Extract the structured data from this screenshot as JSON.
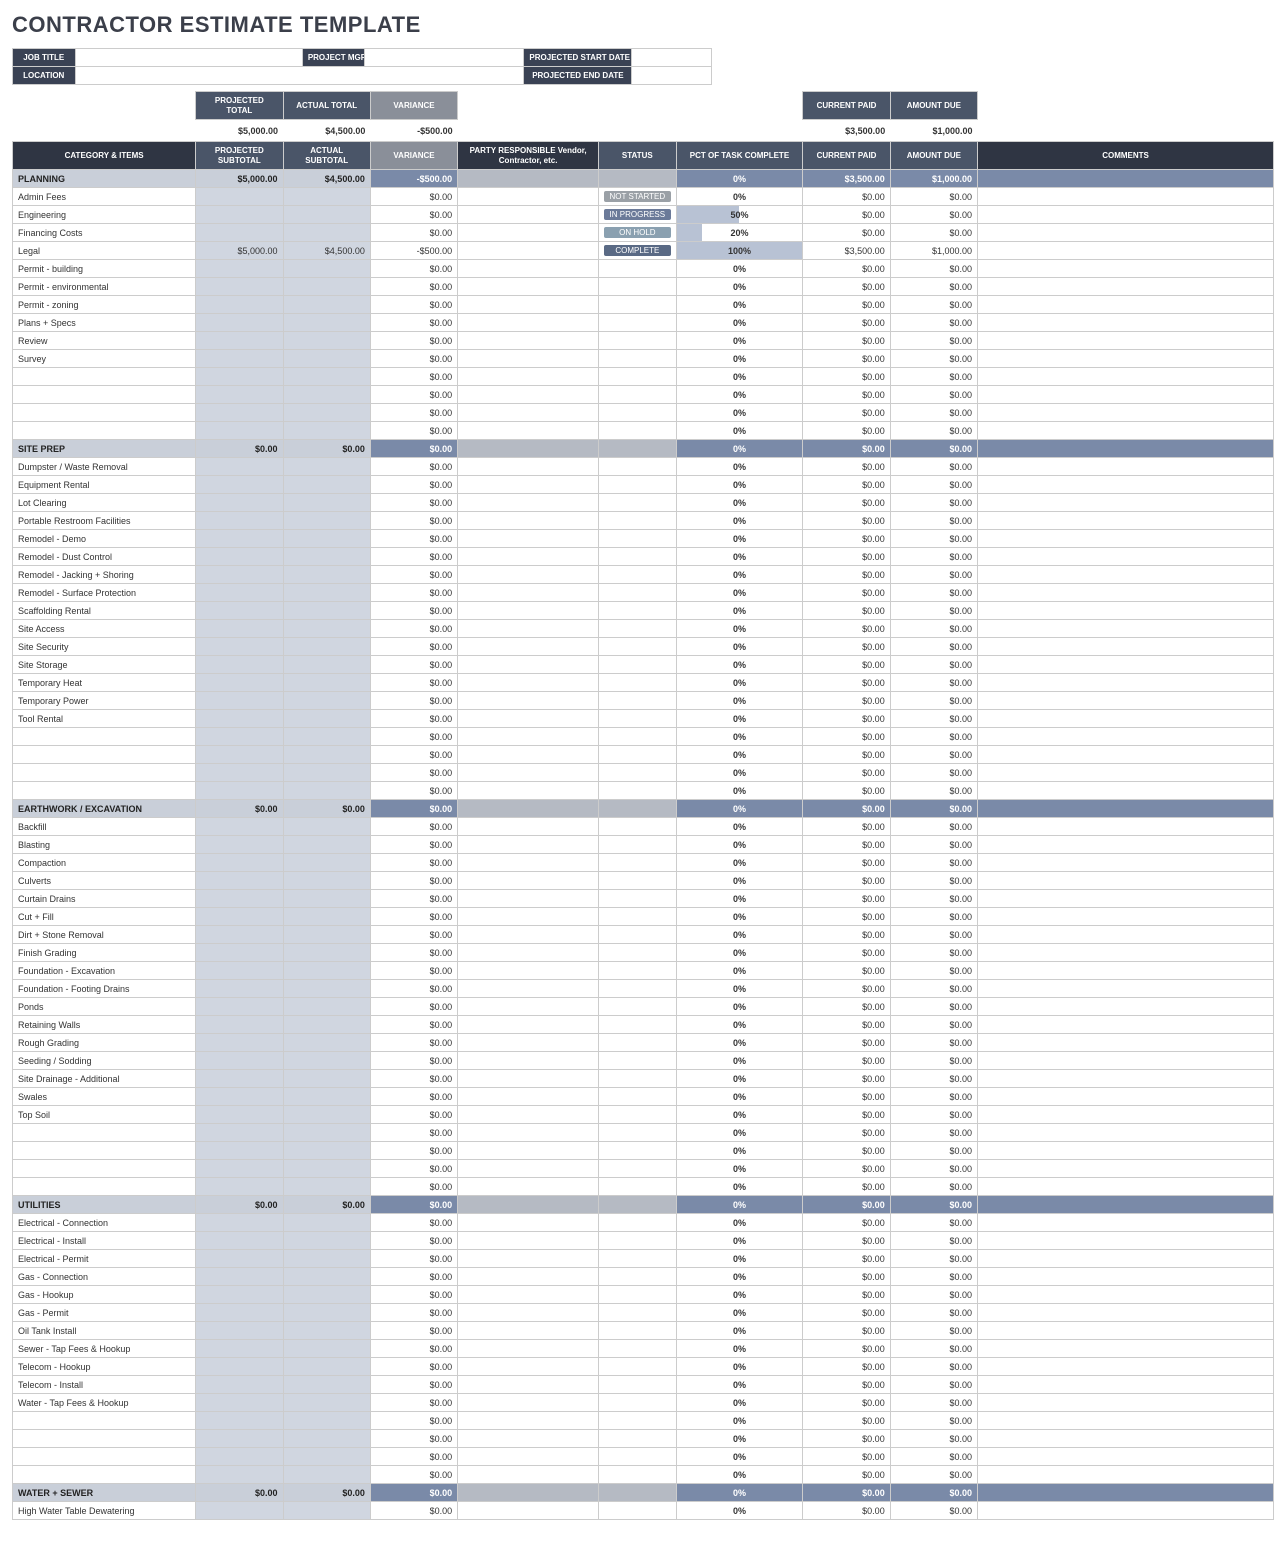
{
  "title": "CONTRACTOR ESTIMATE TEMPLATE",
  "info_labels": {
    "job_title": "JOB TITLE",
    "project_mgr": "PROJECT MGR",
    "start": "PROJECTED START DATE",
    "location": "LOCATION",
    "end": "PROJECTED END DATE"
  },
  "summary_headers": {
    "proj_total": "PROJECTED TOTAL",
    "act_total": "ACTUAL TOTAL",
    "variance": "VARIANCE",
    "curr_paid": "CURRENT PAID",
    "amt_due": "AMOUNT DUE"
  },
  "summary_values": {
    "proj_total": "$5,000.00",
    "act_total": "$4,500.00",
    "variance": "-$500.00",
    "curr_paid": "$3,500.00",
    "amt_due": "$1,000.00"
  },
  "col_headers": {
    "cat": "CATEGORY & ITEMS",
    "proj_sub": "PROJECTED SUBTOTAL",
    "act_sub": "ACTUAL SUBTOTAL",
    "variance": "VARIANCE",
    "party": "PARTY RESPONSIBLE Vendor, Contractor, etc.",
    "status": "STATUS",
    "pct": "PCT OF TASK COMPLETE",
    "curr_paid": "CURRENT PAID",
    "amt_due": "AMOUNT DUE",
    "comments": "COMMENTS"
  },
  "status_labels": {
    "not_started": "NOT STARTED",
    "in_progress": "IN PROGRESS",
    "on_hold": "ON HOLD",
    "complete": "COMPLETE"
  },
  "colors": {
    "section_bg": "#7a8aa8",
    "section_label_bg": "#c9cfd9",
    "sub_cell_bg": "#d0d6e0",
    "hdr_dark": "#2f3543",
    "hdr_mid": "#4a5568",
    "hdr_grey": "#8a8f99",
    "pct_bar": "#b8c2d4"
  },
  "sections": [
    {
      "name": "PLANNING",
      "proj": "$5,000.00",
      "act": "$4,500.00",
      "var": "-$500.00",
      "pct": "0%",
      "paid": "$3,500.00",
      "due": "$1,000.00",
      "items": [
        {
          "name": "Admin Fees",
          "var": "$0.00",
          "status": "not_started",
          "pct": "0%",
          "pct_n": 0,
          "paid": "$0.00",
          "due": "$0.00"
        },
        {
          "name": "Engineering",
          "var": "$0.00",
          "status": "in_progress",
          "pct": "50%",
          "pct_n": 50,
          "paid": "$0.00",
          "due": "$0.00"
        },
        {
          "name": "Financing Costs",
          "var": "$0.00",
          "status": "on_hold",
          "pct": "20%",
          "pct_n": 20,
          "paid": "$0.00",
          "due": "$0.00"
        },
        {
          "name": "Legal",
          "proj": "$5,000.00",
          "act": "$4,500.00",
          "var": "-$500.00",
          "status": "complete",
          "pct": "100%",
          "pct_n": 100,
          "paid": "$3,500.00",
          "due": "$1,000.00"
        },
        {
          "name": "Permit - building",
          "var": "$0.00",
          "pct": "0%",
          "pct_n": 0,
          "paid": "$0.00",
          "due": "$0.00"
        },
        {
          "name": "Permit - environmental",
          "var": "$0.00",
          "pct": "0%",
          "pct_n": 0,
          "paid": "$0.00",
          "due": "$0.00"
        },
        {
          "name": "Permit - zoning",
          "var": "$0.00",
          "pct": "0%",
          "pct_n": 0,
          "paid": "$0.00",
          "due": "$0.00"
        },
        {
          "name": "Plans + Specs",
          "var": "$0.00",
          "pct": "0%",
          "pct_n": 0,
          "paid": "$0.00",
          "due": "$0.00"
        },
        {
          "name": "Review",
          "var": "$0.00",
          "pct": "0%",
          "pct_n": 0,
          "paid": "$0.00",
          "due": "$0.00"
        },
        {
          "name": "Survey",
          "var": "$0.00",
          "pct": "0%",
          "pct_n": 0,
          "paid": "$0.00",
          "due": "$0.00"
        },
        {
          "name": "",
          "var": "$0.00",
          "pct": "0%",
          "pct_n": 0,
          "paid": "$0.00",
          "due": "$0.00"
        },
        {
          "name": "",
          "var": "$0.00",
          "pct": "0%",
          "pct_n": 0,
          "paid": "$0.00",
          "due": "$0.00"
        },
        {
          "name": "",
          "var": "$0.00",
          "pct": "0%",
          "pct_n": 0,
          "paid": "$0.00",
          "due": "$0.00"
        },
        {
          "name": "",
          "var": "$0.00",
          "pct": "0%",
          "pct_n": 0,
          "paid": "$0.00",
          "due": "$0.00"
        }
      ]
    },
    {
      "name": "SITE PREP",
      "proj": "$0.00",
      "act": "$0.00",
      "var": "$0.00",
      "pct": "0%",
      "paid": "$0.00",
      "due": "$0.00",
      "items": [
        {
          "name": "Dumpster / Waste Removal",
          "var": "$0.00",
          "pct": "0%",
          "pct_n": 0,
          "paid": "$0.00",
          "due": "$0.00"
        },
        {
          "name": "Equipment Rental",
          "var": "$0.00",
          "pct": "0%",
          "pct_n": 0,
          "paid": "$0.00",
          "due": "$0.00"
        },
        {
          "name": "Lot Clearing",
          "var": "$0.00",
          "pct": "0%",
          "pct_n": 0,
          "paid": "$0.00",
          "due": "$0.00"
        },
        {
          "name": "Portable Restroom Facilities",
          "var": "$0.00",
          "pct": "0%",
          "pct_n": 0,
          "paid": "$0.00",
          "due": "$0.00"
        },
        {
          "name": "Remodel - Demo",
          "var": "$0.00",
          "pct": "0%",
          "pct_n": 0,
          "paid": "$0.00",
          "due": "$0.00"
        },
        {
          "name": "Remodel - Dust Control",
          "var": "$0.00",
          "pct": "0%",
          "pct_n": 0,
          "paid": "$0.00",
          "due": "$0.00"
        },
        {
          "name": "Remodel - Jacking + Shoring",
          "var": "$0.00",
          "pct": "0%",
          "pct_n": 0,
          "paid": "$0.00",
          "due": "$0.00"
        },
        {
          "name": "Remodel - Surface Protection",
          "var": "$0.00",
          "pct": "0%",
          "pct_n": 0,
          "paid": "$0.00",
          "due": "$0.00"
        },
        {
          "name": "Scaffolding Rental",
          "var": "$0.00",
          "pct": "0%",
          "pct_n": 0,
          "paid": "$0.00",
          "due": "$0.00"
        },
        {
          "name": "Site Access",
          "var": "$0.00",
          "pct": "0%",
          "pct_n": 0,
          "paid": "$0.00",
          "due": "$0.00"
        },
        {
          "name": "Site Security",
          "var": "$0.00",
          "pct": "0%",
          "pct_n": 0,
          "paid": "$0.00",
          "due": "$0.00"
        },
        {
          "name": "Site Storage",
          "var": "$0.00",
          "pct": "0%",
          "pct_n": 0,
          "paid": "$0.00",
          "due": "$0.00"
        },
        {
          "name": "Temporary Heat",
          "var": "$0.00",
          "pct": "0%",
          "pct_n": 0,
          "paid": "$0.00",
          "due": "$0.00"
        },
        {
          "name": "Temporary Power",
          "var": "$0.00",
          "pct": "0%",
          "pct_n": 0,
          "paid": "$0.00",
          "due": "$0.00"
        },
        {
          "name": "Tool Rental",
          "var": "$0.00",
          "pct": "0%",
          "pct_n": 0,
          "paid": "$0.00",
          "due": "$0.00"
        },
        {
          "name": "",
          "var": "$0.00",
          "pct": "0%",
          "pct_n": 0,
          "paid": "$0.00",
          "due": "$0.00"
        },
        {
          "name": "",
          "var": "$0.00",
          "pct": "0%",
          "pct_n": 0,
          "paid": "$0.00",
          "due": "$0.00"
        },
        {
          "name": "",
          "var": "$0.00",
          "pct": "0%",
          "pct_n": 0,
          "paid": "$0.00",
          "due": "$0.00"
        },
        {
          "name": "",
          "var": "$0.00",
          "pct": "0%",
          "pct_n": 0,
          "paid": "$0.00",
          "due": "$0.00"
        }
      ]
    },
    {
      "name": "EARTHWORK / EXCAVATION",
      "proj": "$0.00",
      "act": "$0.00",
      "var": "$0.00",
      "pct": "0%",
      "paid": "$0.00",
      "due": "$0.00",
      "items": [
        {
          "name": "Backfill",
          "var": "$0.00",
          "pct": "0%",
          "pct_n": 0,
          "paid": "$0.00",
          "due": "$0.00"
        },
        {
          "name": "Blasting",
          "var": "$0.00",
          "pct": "0%",
          "pct_n": 0,
          "paid": "$0.00",
          "due": "$0.00"
        },
        {
          "name": "Compaction",
          "var": "$0.00",
          "pct": "0%",
          "pct_n": 0,
          "paid": "$0.00",
          "due": "$0.00"
        },
        {
          "name": "Culverts",
          "var": "$0.00",
          "pct": "0%",
          "pct_n": 0,
          "paid": "$0.00",
          "due": "$0.00"
        },
        {
          "name": "Curtain Drains",
          "var": "$0.00",
          "pct": "0%",
          "pct_n": 0,
          "paid": "$0.00",
          "due": "$0.00"
        },
        {
          "name": "Cut + Fill",
          "var": "$0.00",
          "pct": "0%",
          "pct_n": 0,
          "paid": "$0.00",
          "due": "$0.00"
        },
        {
          "name": "Dirt + Stone Removal",
          "var": "$0.00",
          "pct": "0%",
          "pct_n": 0,
          "paid": "$0.00",
          "due": "$0.00"
        },
        {
          "name": "Finish Grading",
          "var": "$0.00",
          "pct": "0%",
          "pct_n": 0,
          "paid": "$0.00",
          "due": "$0.00"
        },
        {
          "name": "Foundation - Excavation",
          "var": "$0.00",
          "pct": "0%",
          "pct_n": 0,
          "paid": "$0.00",
          "due": "$0.00"
        },
        {
          "name": "Foundation - Footing Drains",
          "var": "$0.00",
          "pct": "0%",
          "pct_n": 0,
          "paid": "$0.00",
          "due": "$0.00"
        },
        {
          "name": "Ponds",
          "var": "$0.00",
          "pct": "0%",
          "pct_n": 0,
          "paid": "$0.00",
          "due": "$0.00"
        },
        {
          "name": "Retaining Walls",
          "var": "$0.00",
          "pct": "0%",
          "pct_n": 0,
          "paid": "$0.00",
          "due": "$0.00"
        },
        {
          "name": "Rough Grading",
          "var": "$0.00",
          "pct": "0%",
          "pct_n": 0,
          "paid": "$0.00",
          "due": "$0.00"
        },
        {
          "name": "Seeding / Sodding",
          "var": "$0.00",
          "pct": "0%",
          "pct_n": 0,
          "paid": "$0.00",
          "due": "$0.00"
        },
        {
          "name": "Site Drainage - Additional",
          "var": "$0.00",
          "pct": "0%",
          "pct_n": 0,
          "paid": "$0.00",
          "due": "$0.00"
        },
        {
          "name": "Swales",
          "var": "$0.00",
          "pct": "0%",
          "pct_n": 0,
          "paid": "$0.00",
          "due": "$0.00"
        },
        {
          "name": "Top Soil",
          "var": "$0.00",
          "pct": "0%",
          "pct_n": 0,
          "paid": "$0.00",
          "due": "$0.00"
        },
        {
          "name": "",
          "var": "$0.00",
          "pct": "0%",
          "pct_n": 0,
          "paid": "$0.00",
          "due": "$0.00"
        },
        {
          "name": "",
          "var": "$0.00",
          "pct": "0%",
          "pct_n": 0,
          "paid": "$0.00",
          "due": "$0.00"
        },
        {
          "name": "",
          "var": "$0.00",
          "pct": "0%",
          "pct_n": 0,
          "paid": "$0.00",
          "due": "$0.00"
        },
        {
          "name": "",
          "var": "$0.00",
          "pct": "0%",
          "pct_n": 0,
          "paid": "$0.00",
          "due": "$0.00"
        }
      ]
    },
    {
      "name": "UTILITIES",
      "proj": "$0.00",
      "act": "$0.00",
      "var": "$0.00",
      "pct": "0%",
      "paid": "$0.00",
      "due": "$0.00",
      "items": [
        {
          "name": "Electrical - Connection",
          "var": "$0.00",
          "pct": "0%",
          "pct_n": 0,
          "paid": "$0.00",
          "due": "$0.00"
        },
        {
          "name": "Electrical - Install",
          "var": "$0.00",
          "pct": "0%",
          "pct_n": 0,
          "paid": "$0.00",
          "due": "$0.00"
        },
        {
          "name": "Electrical - Permit",
          "var": "$0.00",
          "pct": "0%",
          "pct_n": 0,
          "paid": "$0.00",
          "due": "$0.00"
        },
        {
          "name": "Gas - Connection",
          "var": "$0.00",
          "pct": "0%",
          "pct_n": 0,
          "paid": "$0.00",
          "due": "$0.00"
        },
        {
          "name": "Gas - Hookup",
          "var": "$0.00",
          "pct": "0%",
          "pct_n": 0,
          "paid": "$0.00",
          "due": "$0.00"
        },
        {
          "name": "Gas - Permit",
          "var": "$0.00",
          "pct": "0%",
          "pct_n": 0,
          "paid": "$0.00",
          "due": "$0.00"
        },
        {
          "name": "Oil Tank Install",
          "var": "$0.00",
          "pct": "0%",
          "pct_n": 0,
          "paid": "$0.00",
          "due": "$0.00"
        },
        {
          "name": "Sewer - Tap Fees & Hookup",
          "var": "$0.00",
          "pct": "0%",
          "pct_n": 0,
          "paid": "$0.00",
          "due": "$0.00"
        },
        {
          "name": "Telecom - Hookup",
          "var": "$0.00",
          "pct": "0%",
          "pct_n": 0,
          "paid": "$0.00",
          "due": "$0.00"
        },
        {
          "name": "Telecom - Install",
          "var": "$0.00",
          "pct": "0%",
          "pct_n": 0,
          "paid": "$0.00",
          "due": "$0.00"
        },
        {
          "name": "Water - Tap Fees & Hookup",
          "var": "$0.00",
          "pct": "0%",
          "pct_n": 0,
          "paid": "$0.00",
          "due": "$0.00"
        },
        {
          "name": "",
          "var": "$0.00",
          "pct": "0%",
          "pct_n": 0,
          "paid": "$0.00",
          "due": "$0.00"
        },
        {
          "name": "",
          "var": "$0.00",
          "pct": "0%",
          "pct_n": 0,
          "paid": "$0.00",
          "due": "$0.00"
        },
        {
          "name": "",
          "var": "$0.00",
          "pct": "0%",
          "pct_n": 0,
          "paid": "$0.00",
          "due": "$0.00"
        },
        {
          "name": "",
          "var": "$0.00",
          "pct": "0%",
          "pct_n": 0,
          "paid": "$0.00",
          "due": "$0.00"
        }
      ]
    },
    {
      "name": "WATER + SEWER",
      "proj": "$0.00",
      "act": "$0.00",
      "var": "$0.00",
      "pct": "0%",
      "paid": "$0.00",
      "due": "$0.00",
      "items": [
        {
          "name": "High Water Table Dewatering",
          "var": "$0.00",
          "pct": "0%",
          "pct_n": 0,
          "paid": "$0.00",
          "due": "$0.00"
        }
      ]
    }
  ]
}
